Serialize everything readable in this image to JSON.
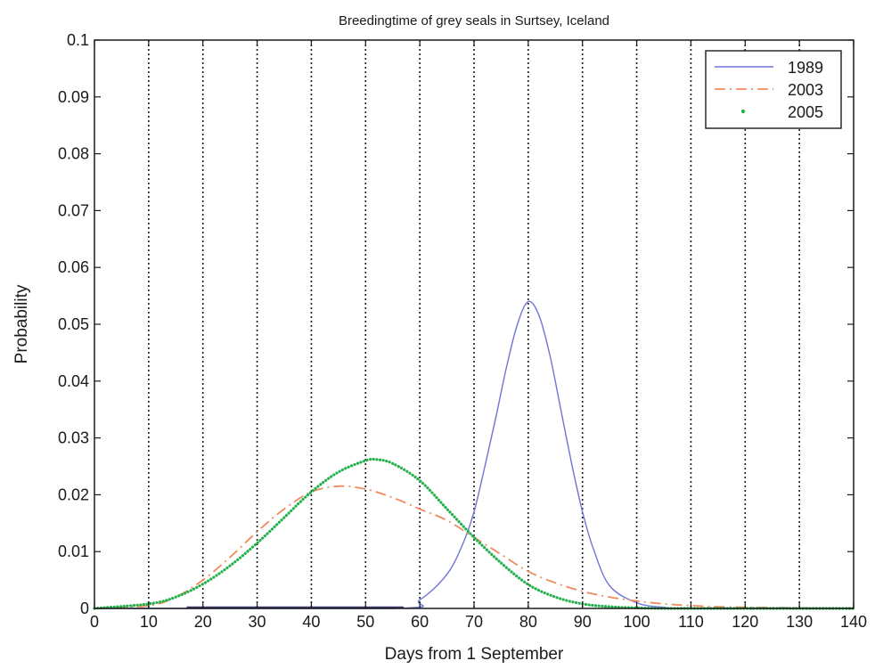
{
  "chart_data": {
    "type": "line",
    "title": "Breedingtime of grey seals in Surtsey, Iceland",
    "xlabel": "Days from 1 September",
    "ylabel": "Probability",
    "xlim": [
      0,
      140
    ],
    "ylim": [
      0,
      0.1
    ],
    "x_ticks": [
      0,
      10,
      20,
      30,
      40,
      50,
      60,
      70,
      80,
      90,
      100,
      110,
      120,
      130,
      140
    ],
    "y_ticks": [
      0,
      0.01,
      0.02,
      0.03,
      0.04,
      0.05,
      0.06,
      0.07,
      0.08,
      0.09,
      0.1
    ],
    "x_tick_labels": [
      "0",
      "10",
      "20",
      "30",
      "40",
      "50",
      "60",
      "70",
      "80",
      "90",
      "100",
      "110",
      "120",
      "130",
      "140"
    ],
    "y_tick_labels": [
      "0",
      "0.01",
      "0.02",
      "0.03",
      "0.04",
      "0.05",
      "0.06",
      "0.07",
      "0.08",
      "0.09",
      "0.1"
    ],
    "grid": "vertical-dotted",
    "legend_position": "top-right",
    "series": [
      {
        "name": "1989",
        "style": "solid",
        "color": "#6f74d8",
        "x": [
          0,
          55,
          60,
          65,
          68,
          70,
          72,
          74,
          76,
          78,
          80,
          82,
          84,
          86,
          88,
          90,
          92,
          95,
          100,
          105,
          110,
          140
        ],
        "y": [
          0,
          0.0,
          0.0015,
          0.006,
          0.0115,
          0.017,
          0.025,
          0.0335,
          0.0425,
          0.05,
          0.054,
          0.0515,
          0.0445,
          0.035,
          0.0255,
          0.017,
          0.0105,
          0.004,
          0.001,
          0.0002,
          0.0,
          0.0
        ]
      },
      {
        "name": "2003",
        "style": "dashdot",
        "color": "#f08a5d",
        "x": [
          0,
          10,
          15,
          20,
          25,
          30,
          35,
          40,
          45,
          50,
          55,
          60,
          65,
          70,
          75,
          80,
          85,
          90,
          95,
          100,
          105,
          110,
          115,
          120,
          130,
          140
        ],
        "y": [
          0,
          0.0005,
          0.002,
          0.005,
          0.009,
          0.0135,
          0.0175,
          0.0205,
          0.0215,
          0.021,
          0.0195,
          0.0175,
          0.0155,
          0.0125,
          0.0095,
          0.0065,
          0.0045,
          0.003,
          0.002,
          0.0013,
          0.0008,
          0.0005,
          0.0003,
          0.0002,
          0.0001,
          0.0
        ]
      },
      {
        "name": "2005",
        "style": "dotted",
        "color": "#22b14c",
        "x": [
          0,
          10,
          15,
          20,
          25,
          30,
          35,
          40,
          45,
          50,
          52,
          55,
          60,
          65,
          70,
          75,
          80,
          85,
          90,
          95,
          100,
          105,
          110,
          120,
          140
        ],
        "y": [
          0,
          0.0008,
          0.002,
          0.0043,
          0.0075,
          0.0115,
          0.016,
          0.0205,
          0.024,
          0.026,
          0.0262,
          0.0255,
          0.0225,
          0.0175,
          0.0125,
          0.008,
          0.0042,
          0.002,
          0.0008,
          0.0003,
          0.0001,
          0.0,
          0.0,
          0.0,
          0.0
        ]
      }
    ]
  }
}
